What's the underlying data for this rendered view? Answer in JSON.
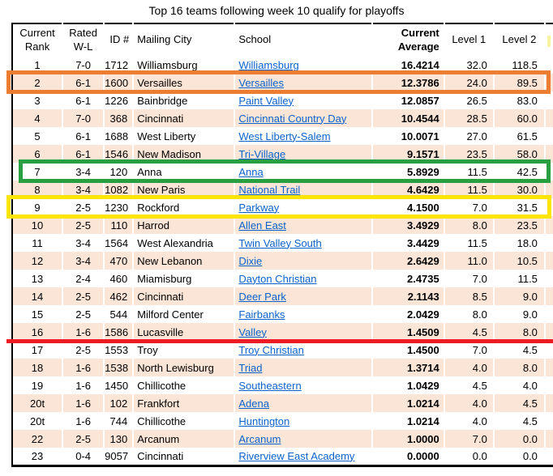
{
  "title": "Top 16 teams following week 10 qualify for playoffs",
  "table": {
    "columns": [
      "Current Rank",
      "Rated W-L",
      "ID #",
      "Mailing City",
      "School",
      "Current Average",
      "Level 1",
      "Level 2"
    ],
    "rows": [
      {
        "rank": "1",
        "record": "7-0",
        "id": "1712",
        "city": "Williamsburg",
        "school": "Williamsburg",
        "avg": "16.4214",
        "level1": "32.0",
        "level2": "118.5"
      },
      {
        "rank": "2",
        "record": "6-1",
        "id": "1600",
        "city": "Versailles",
        "school": "Versailles",
        "avg": "12.3786",
        "level1": "24.0",
        "level2": "89.5"
      },
      {
        "rank": "3",
        "record": "6-1",
        "id": "1226",
        "city": "Bainbridge",
        "school": "Paint Valley",
        "avg": "12.0857",
        "level1": "26.5",
        "level2": "83.0"
      },
      {
        "rank": "4",
        "record": "7-0",
        "id": "368",
        "city": "Cincinnati",
        "school": "Cincinnati Country Day",
        "avg": "10.4544",
        "level1": "28.5",
        "level2": "60.0"
      },
      {
        "rank": "5",
        "record": "6-1",
        "id": "1688",
        "city": "West Liberty",
        "school": "West Liberty-Salem",
        "avg": "10.0071",
        "level1": "27.0",
        "level2": "61.5"
      },
      {
        "rank": "6",
        "record": "6-1",
        "id": "1546",
        "city": "New Madison",
        "school": "Tri-Village",
        "avg": "9.1571",
        "level1": "23.5",
        "level2": "58.0"
      },
      {
        "rank": "7",
        "record": "3-4",
        "id": "120",
        "city": "Anna",
        "school": "Anna",
        "avg": "5.8929",
        "level1": "11.5",
        "level2": "42.5"
      },
      {
        "rank": "8",
        "record": "3-4",
        "id": "1082",
        "city": "New Paris",
        "school": "National Trail",
        "avg": "4.6429",
        "level1": "11.5",
        "level2": "30.0"
      },
      {
        "rank": "9",
        "record": "2-5",
        "id": "1230",
        "city": "Rockford",
        "school": "Parkway",
        "avg": "4.1500",
        "level1": "7.0",
        "level2": "31.5"
      },
      {
        "rank": "10",
        "record": "2-5",
        "id": "110",
        "city": "Harrod",
        "school": "Allen East",
        "avg": "3.4929",
        "level1": "8.0",
        "level2": "23.5"
      },
      {
        "rank": "11",
        "record": "3-4",
        "id": "1564",
        "city": "West Alexandria",
        "school": "Twin Valley South",
        "avg": "3.4429",
        "level1": "11.5",
        "level2": "18.0"
      },
      {
        "rank": "12",
        "record": "3-4",
        "id": "470",
        "city": "New Lebanon",
        "school": "Dixie",
        "avg": "2.6429",
        "level1": "11.0",
        "level2": "10.5"
      },
      {
        "rank": "13",
        "record": "2-4",
        "id": "460",
        "city": "Miamisburg",
        "school": "Dayton Christian",
        "avg": "2.4735",
        "level1": "7.0",
        "level2": "11.5"
      },
      {
        "rank": "14",
        "record": "2-5",
        "id": "462",
        "city": "Cincinnati",
        "school": "Deer Park",
        "avg": "2.1143",
        "level1": "8.5",
        "level2": "9.0"
      },
      {
        "rank": "15",
        "record": "2-5",
        "id": "544",
        "city": "Milford Center",
        "school": "Fairbanks",
        "avg": "2.0429",
        "level1": "8.0",
        "level2": "9.0"
      },
      {
        "rank": "16",
        "record": "1-6",
        "id": "1586",
        "city": "Lucasville",
        "school": "Valley",
        "avg": "1.4509",
        "level1": "4.5",
        "level2": "8.0"
      },
      {
        "rank": "17",
        "record": "2-5",
        "id": "1553",
        "city": "Troy",
        "school": "Troy Christian",
        "avg": "1.4500",
        "level1": "7.0",
        "level2": "4.5"
      },
      {
        "rank": "18",
        "record": "1-6",
        "id": "1538",
        "city": "North Lewisburg",
        "school": "Triad",
        "avg": "1.3714",
        "level1": "4.0",
        "level2": "8.0"
      },
      {
        "rank": "19",
        "record": "1-6",
        "id": "1450",
        "city": "Chillicothe",
        "school": "Southeastern",
        "avg": "1.0429",
        "level1": "4.5",
        "level2": "4.0"
      },
      {
        "rank": "20t",
        "record": "1-6",
        "id": "102",
        "city": "Frankfort",
        "school": "Adena",
        "avg": "1.0214",
        "level1": "4.0",
        "level2": "4.5"
      },
      {
        "rank": "20t",
        "record": "1-6",
        "id": "744",
        "city": "Chillicothe",
        "school": "Huntington",
        "avg": "1.0214",
        "level1": "4.0",
        "level2": "4.5"
      },
      {
        "rank": "22",
        "record": "2-5",
        "id": "130",
        "city": "Arcanum",
        "school": "Arcanum",
        "avg": "1.0000",
        "level1": "7.0",
        "level2": "0.0"
      },
      {
        "rank": "23",
        "record": "0-4",
        "id": "9057",
        "city": "Cincinnati",
        "school": "Riverview East Academy",
        "avg": "0.0000",
        "level1": "0.0",
        "level2": "0.0"
      }
    ]
  },
  "annotations": [
    {
      "name": "orange-highlight-box",
      "shape": "box",
      "color": "#ED7D31",
      "target_rank": "2"
    },
    {
      "name": "green-highlight-box",
      "shape": "box",
      "color": "#28A042",
      "target_rank": "7"
    },
    {
      "name": "yellow-highlight-box",
      "shape": "box",
      "color": "#FFE500",
      "target_rank": "9"
    },
    {
      "name": "red-cutoff-line",
      "shape": "line",
      "color": "#ED1C24",
      "target_rank": "16"
    }
  ],
  "colors": {
    "row_stripe": "#FBE5D6",
    "link": "#0B62CC",
    "border": "#000000",
    "header_highlight_tick": "#F7F3A0"
  }
}
